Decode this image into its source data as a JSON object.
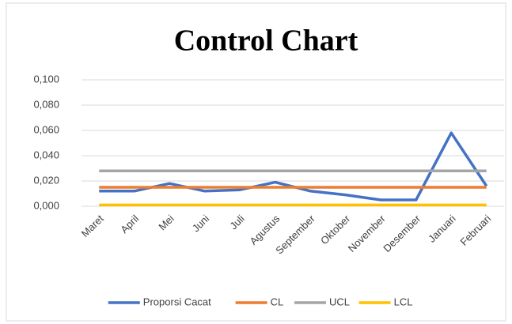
{
  "chart_data": {
    "type": "line",
    "title": "Control Chart",
    "categories": [
      "Maret",
      "April",
      "Mei",
      "Juni",
      "Juli",
      "Agustus",
      "September",
      "Oktober",
      "November",
      "Desember",
      "Januari",
      "Februari"
    ],
    "series": [
      {
        "name": "Proporsi Cacat",
        "color": "#4472c4",
        "values": [
          0.012,
          0.012,
          0.018,
          0.012,
          0.013,
          0.019,
          0.012,
          0.009,
          0.005,
          0.005,
          0.058,
          0.016
        ]
      },
      {
        "name": "CL",
        "color": "#ed7d31",
        "values": [
          0.015,
          0.015,
          0.015,
          0.015,
          0.015,
          0.015,
          0.015,
          0.015,
          0.015,
          0.015,
          0.015,
          0.015
        ]
      },
      {
        "name": "UCL",
        "color": "#a5a5a5",
        "values": [
          0.028,
          0.028,
          0.028,
          0.028,
          0.028,
          0.028,
          0.028,
          0.028,
          0.028,
          0.028,
          0.028,
          0.028
        ]
      },
      {
        "name": "LCL",
        "color": "#ffc000",
        "values": [
          0.001,
          0.001,
          0.001,
          0.001,
          0.001,
          0.001,
          0.001,
          0.001,
          0.001,
          0.001,
          0.001,
          0.001
        ]
      }
    ],
    "ylim": [
      0,
      0.1
    ],
    "yticks": [
      {
        "value": 0,
        "label": "0,000"
      },
      {
        "value": 0.02,
        "label": "0,020"
      },
      {
        "value": 0.04,
        "label": "0,040"
      },
      {
        "value": 0.06,
        "label": "0,060"
      },
      {
        "value": 0.08,
        "label": "0,080"
      },
      {
        "value": 0.1,
        "label": "0,100"
      }
    ],
    "grid": true,
    "legend": "bottom"
  }
}
